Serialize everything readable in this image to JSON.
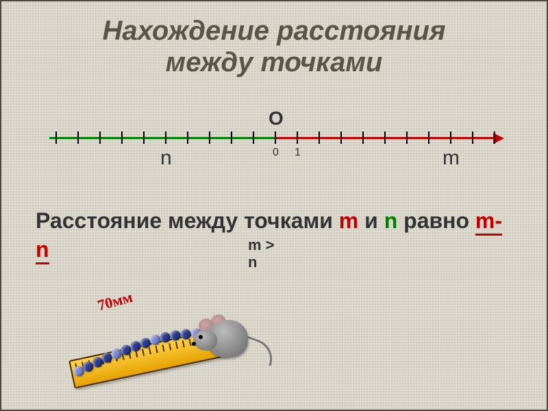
{
  "title_line1": "Нахождение расстояния",
  "title_line2": "между точками",
  "numberline": {
    "neg_color": "#008000",
    "pos_color": "#c00000",
    "tick_count_left": 10,
    "tick_count_right": 10,
    "tick_spacing_px": 32,
    "origin_label": "О",
    "zero_label": "0",
    "one_label": "1",
    "n_label": "n",
    "n_tick_index_from_left": 5,
    "m_label": "m",
    "m_tick_index_from_zero": 8
  },
  "sentence": {
    "part1": "Расстояние между точками ",
    "m": "m",
    "part2": " и ",
    "n": "n",
    "part3": " равно  ",
    "answer": "m-n"
  },
  "condition": {
    "line1": "m >",
    "line2": "n"
  },
  "illustration": {
    "seventy_label": "70мм",
    "bead_color_primary": "#2a3a8f",
    "bead_color_secondary": "#7a88d4",
    "bead_positions": [
      [
        5,
        50
      ],
      [
        20,
        48
      ],
      [
        35,
        46
      ],
      [
        50,
        44
      ],
      [
        65,
        43
      ],
      [
        80,
        42
      ],
      [
        95,
        41
      ],
      [
        110,
        41
      ],
      [
        125,
        41
      ],
      [
        140,
        42
      ],
      [
        155,
        44
      ],
      [
        170,
        47
      ],
      [
        185,
        51
      ],
      [
        200,
        56
      ],
      [
        215,
        62
      ]
    ],
    "ruler_color_top": "#ffd24a",
    "ruler_color_bottom": "#e6a200"
  },
  "background_color": "#d8d4c8",
  "border_color": "#4a443a"
}
